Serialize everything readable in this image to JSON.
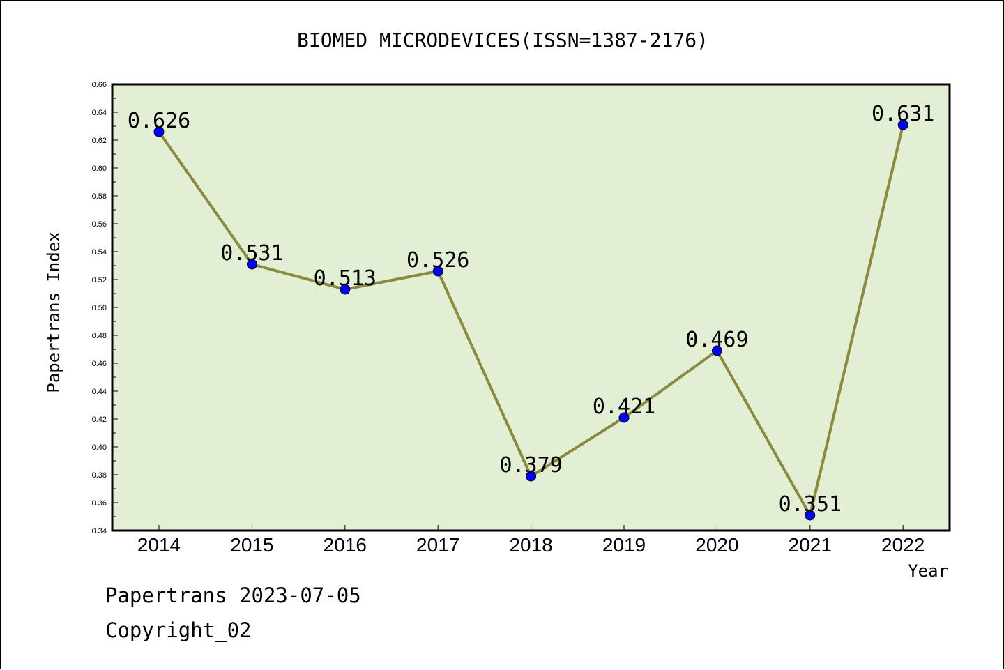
{
  "chart_data": {
    "type": "line",
    "title": "BIOMED MICRODEVICES(ISSN=1387-2176)",
    "xlabel": "Year",
    "ylabel": "Papertrans Index",
    "categories": [
      "2014",
      "2015",
      "2016",
      "2017",
      "2018",
      "2019",
      "2020",
      "2021",
      "2022"
    ],
    "values": [
      0.626,
      0.531,
      0.513,
      0.526,
      0.379,
      0.421,
      0.469,
      0.351,
      0.631
    ],
    "data_labels": [
      "0.626",
      "0.531",
      "0.513",
      "0.526",
      "0.379",
      "0.421",
      "0.469",
      "0.351",
      "0.631"
    ],
    "ylim": [
      0.34,
      0.66
    ],
    "yticks": [
      "0.34",
      "0.36",
      "0.38",
      "0.40",
      "0.42",
      "0.44",
      "0.46",
      "0.48",
      "0.50",
      "0.52",
      "0.54",
      "0.56",
      "0.58",
      "0.60",
      "0.62",
      "0.64",
      "0.66"
    ],
    "grid": false,
    "colors": {
      "plot_background": "#e2efd4",
      "line": "#8b8a3e",
      "marker": "#0000ff"
    }
  },
  "footer": {
    "line1": "Papertrans 2023-07-05",
    "line2": "Copyright_02"
  }
}
